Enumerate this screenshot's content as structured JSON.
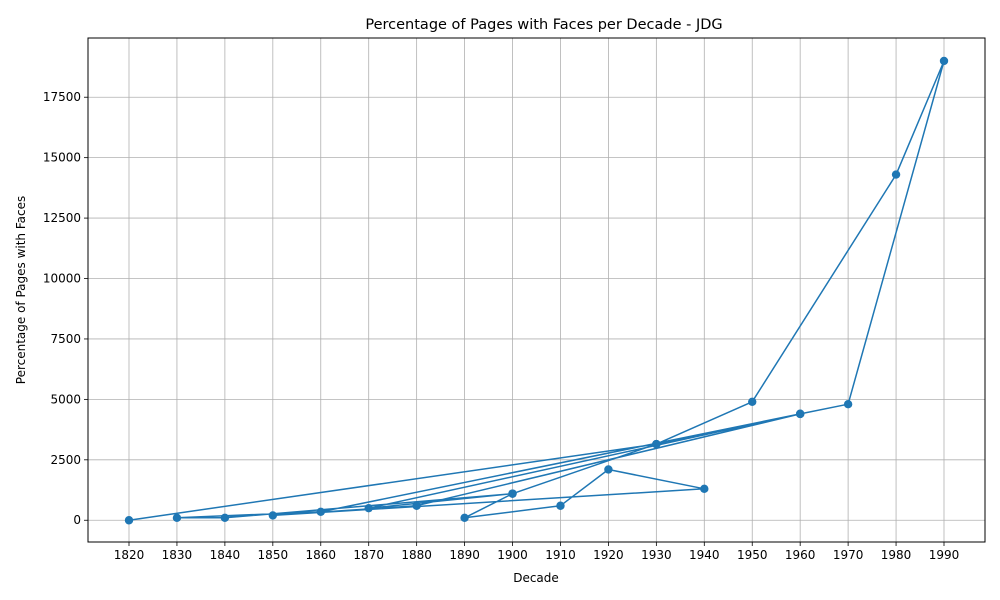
{
  "chart_data": {
    "type": "line",
    "title": "Percentage of Pages with Faces per Decade - JDG",
    "xlabel": "Decade",
    "ylabel": "Percentage of Pages with Faces",
    "grid": true,
    "marker": "circle",
    "color": "#1f77b4",
    "categories": [
      "1820",
      "1830",
      "1840",
      "1850",
      "1860",
      "1870",
      "1880",
      "1890",
      "1900",
      "1910",
      "1920",
      "1930",
      "1940",
      "1950",
      "1960",
      "1970",
      "1980",
      "1990"
    ],
    "yticks": [
      0,
      2500,
      5000,
      7500,
      10000,
      12500,
      15000,
      17500
    ],
    "ylim": [
      -900,
      19950
    ],
    "series": [
      {
        "points": [
          {
            "x": "1820",
            "y": 0
          },
          {
            "x": "1930",
            "y": 3150
          },
          {
            "x": "1960",
            "y": 4400
          },
          {
            "x": "1860",
            "y": 350
          },
          {
            "x": "1830",
            "y": 100
          },
          {
            "x": "1840",
            "y": 100
          },
          {
            "x": "1900",
            "y": 1100
          },
          {
            "x": "1870",
            "y": 500
          },
          {
            "x": "1960",
            "y": 4400
          },
          {
            "x": "1880",
            "y": 600
          },
          {
            "x": "1850",
            "y": 200
          },
          {
            "x": "1940",
            "y": 1300
          },
          {
            "x": "1920",
            "y": 2100
          },
          {
            "x": "1910",
            "y": 600
          },
          {
            "x": "1890",
            "y": 100
          },
          {
            "x": "1900",
            "y": 1100
          },
          {
            "x": "1930",
            "y": 3150
          },
          {
            "x": "1950",
            "y": 4900
          },
          {
            "x": "1980",
            "y": 14300
          },
          {
            "x": "1990",
            "y": 19000
          },
          {
            "x": "1970",
            "y": 4800
          },
          {
            "x": "1960",
            "y": 4400
          }
        ]
      }
    ]
  }
}
